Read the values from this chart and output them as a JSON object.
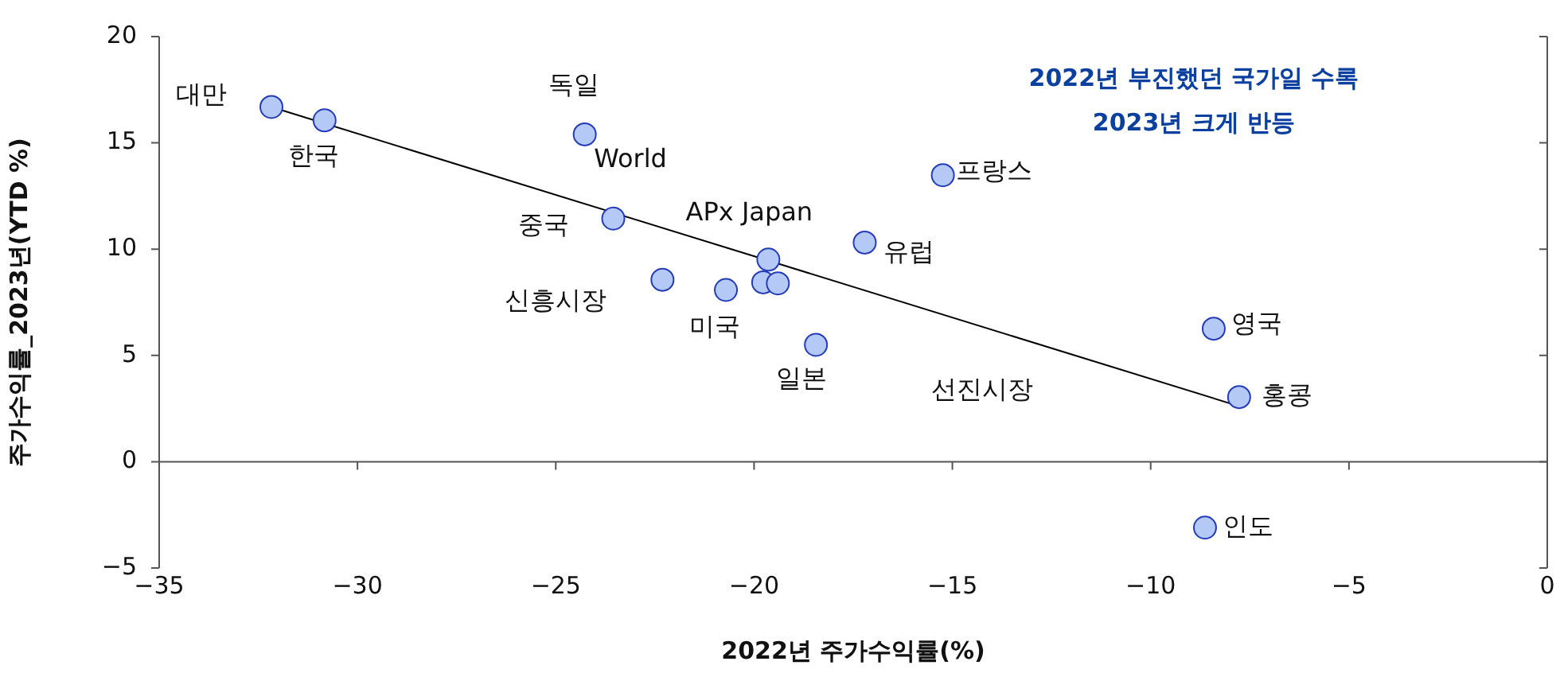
{
  "chart_data": {
    "type": "scatter",
    "xlabel": "2022년 주가수익률(%)",
    "ylabel": "주가수익률_2023년(YTD %)",
    "series": [
      {
        "type": "scatter",
        "color": "#b4c9f5",
        "x": [
          -32.17,
          -30.83,
          -24.27,
          -23.55,
          -22.31,
          -20.71,
          -19.64,
          -19.77,
          -19.4,
          -18.44,
          -17.21,
          -15.24,
          -8.41,
          -7.77,
          -8.63
        ],
        "values": [
          16.69,
          16.06,
          15.4,
          11.44,
          8.56,
          8.08,
          9.51,
          8.44,
          8.39,
          5.5,
          10.31,
          13.48,
          6.26,
          3.04,
          -3.1
        ]
      },
      {
        "type": "line",
        "color": "#000000",
        "marker": "none",
        "x": [
          -32.17,
          -7.8
        ],
        "values": [
          16.69,
          2.63
        ]
      }
    ],
    "xlim": [
      -35,
      0
    ],
    "xticks": [
      {
        "value": -35,
        "label": "−35"
      },
      {
        "value": -30,
        "label": "−30"
      },
      {
        "value": -25,
        "label": "−25"
      },
      {
        "value": -20,
        "label": "−20"
      },
      {
        "value": -15,
        "label": "−15"
      },
      {
        "value": -10,
        "label": "−10"
      },
      {
        "value": -5,
        "label": "−5"
      },
      0
    ],
    "ylim": [
      -5,
      20
    ],
    "yticks": [
      {
        "value": -5,
        "label": "−5"
      },
      0,
      5,
      10,
      15,
      20
    ],
    "marker": "circle",
    "legend": false,
    "ref_lines": [
      {
        "axis": "y",
        "value": 0,
        "color": "#555555"
      }
    ],
    "annotations": [
      "2022년 부진했던 국가일 수록",
      "2023년 크게 반등",
      "World",
      "선진시장",
      {
        "text": "대만",
        "x": -32.17,
        "y": 16.69
      },
      {
        "text": "한국",
        "x": -30.83,
        "y": 16.06
      },
      {
        "text": "독일",
        "x": -24.27,
        "y": 15.4
      },
      {
        "text": "중국",
        "x": -23.55,
        "y": 11.44
      },
      {
        "text": "신흥시장",
        "x": -22.31,
        "y": 8.56
      },
      {
        "text": "미국",
        "x": -20.71,
        "y": 8.08
      },
      {
        "text": "APx Japan",
        "x": -19.64,
        "y": 9.51
      },
      {
        "text": "일본",
        "x": -18.44,
        "y": 5.5
      },
      {
        "text": "유럽",
        "x": -17.21,
        "y": 10.31
      },
      {
        "text": "프랑스",
        "x": -15.24,
        "y": 13.48
      },
      {
        "text": "영국",
        "x": -8.41,
        "y": 6.26
      },
      {
        "text": "홍콩",
        "x": -7.77,
        "y": 3.04
      },
      {
        "text": "인도",
        "x": -8.63,
        "y": -3.1
      }
    ]
  }
}
